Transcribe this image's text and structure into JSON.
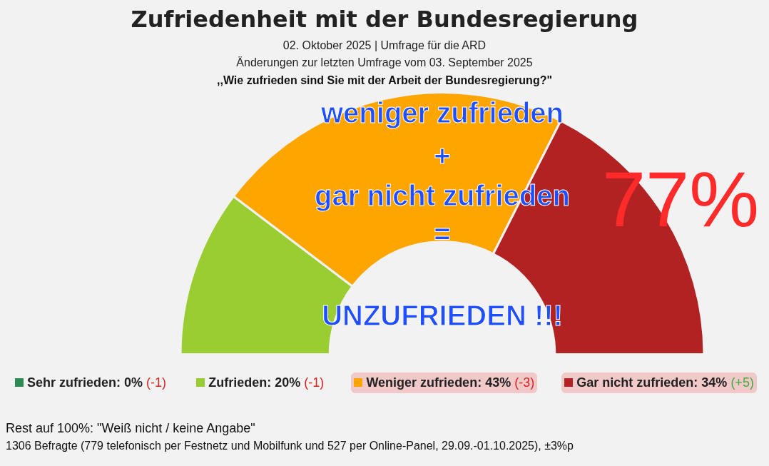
{
  "chart_data": {
    "type": "donut",
    "title": "Zufriedenheit mit der Bundesregierung",
    "subtitle": "02. Oktober 2025 | Umfrage für die ARD\nÄnderungen zur letzten Umfrage vom 03. September 2025",
    "categories": [
      "Sehr zufrieden",
      "Zufrieden",
      "Weniger zufrieden",
      "Gar nicht zufrieden"
    ],
    "values": [
      0,
      20,
      43,
      34
    ],
    "colors": [
      "#2e8b57",
      "#9acd32",
      "#ffa500",
      "#b22222"
    ],
    "legend": "bottom",
    "value_labels": [
      ": 0% (-1)",
      ": 20% (-1)",
      ": 43% (-3)",
      ": 34% (+5)"
    ],
    "annotations": [
      ",,Wie zufrieden sind Sie mit der Arbeit der Bundesregierung?\"",
      "weniger zufrieden",
      "+",
      "gar nicht zufrieden",
      "=",
      "UNZUFRIEDEN !!!",
      "77%",
      "Rest auf 100%: \"Weiß nicht / keine Angabe\"",
      "1306 Befragte (779 telefonisch per Festnetz und Mobilfunk und 527 per Online-Panel, 29.09.-01.10.2025), ±3%p"
    ]
  }
}
